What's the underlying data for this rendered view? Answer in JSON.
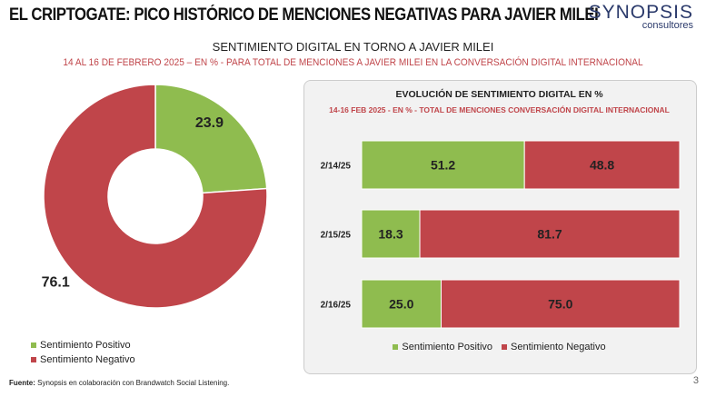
{
  "header": {
    "title": "EL CRIPTOGATE: PICO HISTÓRICO DE MENCIONES NEGATIVAS PARA JAVIER MILEI",
    "logo_main": "SYNOPSIS",
    "logo_sub": "consultores"
  },
  "subtitle": "SENTIMIENTO DIGITAL EN TORNO A JAVIER MILEI",
  "subtitle2": "14 AL 16 DE FEBRERO 2025 – EN % - PARA TOTAL DE MENCIONES A JAVIER MILEI EN LA CONVERSACIÓN DIGITAL INTERNACIONAL",
  "colors": {
    "positive": "#8fbc4f",
    "negative": "#c0454a"
  },
  "chart_data": [
    {
      "type": "pie",
      "donut": true,
      "series": [
        {
          "name": "Sentimiento Positivo",
          "value": 23.9
        },
        {
          "name": "Sentimiento Negativo",
          "value": 76.1
        }
      ],
      "legend": "bottom-left"
    },
    {
      "type": "bar",
      "orientation": "horizontal",
      "stacked": true,
      "title": "EVOLUCIÓN DE SENTIMIENTO DIGITAL EN %",
      "subtitle": "14-16 FEB 2025 - EN % - TOTAL DE MENCIONES CONVERSACIÓN DIGITAL INTERNACIONAL",
      "categories": [
        "2/14/25",
        "2/15/25",
        "2/16/25"
      ],
      "series": [
        {
          "name": "Sentimiento Positivo",
          "values": [
            51.2,
            18.3,
            25.0
          ]
        },
        {
          "name": "Sentimiento Negativo",
          "values": [
            48.8,
            81.7,
            75.0
          ]
        }
      ],
      "legend": "bottom"
    }
  ],
  "legend": {
    "positive": "Sentimiento Positivo",
    "negative": "Sentimiento Negativo"
  },
  "footer": {
    "source_label": "Fuente:",
    "source": " Synopsis en colaboración con Brandwatch Social Listening.",
    "page": "3"
  }
}
